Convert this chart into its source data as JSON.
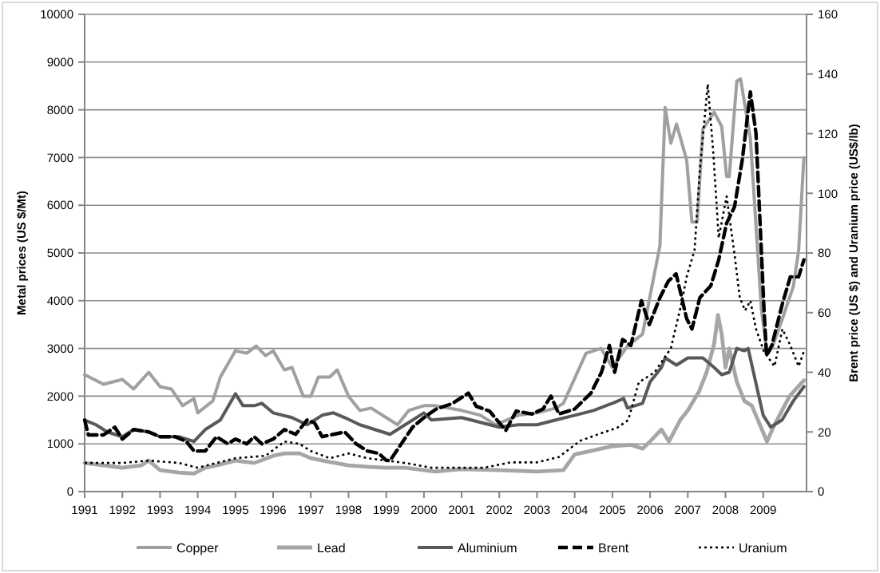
{
  "chart_data": {
    "type": "line",
    "ylabel": "Metal prices (US $/Mt)",
    "y2label": "Brent price (US $) and Uranium price (US$/lb)",
    "xlim": [
      1991,
      2010.15
    ],
    "xticks": [
      1991,
      1992,
      1993,
      1994,
      1995,
      1996,
      1997,
      1998,
      1999,
      2000,
      2001,
      2002,
      2003,
      2004,
      2005,
      2006,
      2007,
      2008,
      2009
    ],
    "ylim": [
      0,
      10000
    ],
    "yticks": [
      0,
      1000,
      2000,
      3000,
      4000,
      5000,
      6000,
      7000,
      8000,
      9000,
      10000
    ],
    "y2lim": [
      0,
      160
    ],
    "y2ticks": [
      0,
      20,
      40,
      60,
      80,
      100,
      120,
      140,
      160
    ],
    "grid": "y",
    "legend": "bottom",
    "marker": "none",
    "series": [
      {
        "name": "Copper",
        "color": "#a0a0a0",
        "line_style": "solid",
        "x": [
          1991,
          1991.5,
          1992,
          1992.3,
          1992.7,
          1993,
          1993.3,
          1993.6,
          1993.9,
          1994,
          1994.4,
          1994.6,
          1995,
          1995.3,
          1995.55,
          1995.8,
          1996,
          1996.3,
          1996.5,
          1996.8,
          1997,
          1997.2,
          1997.5,
          1997.7,
          1998,
          1998.3,
          1998.6,
          1999,
          1999.3,
          1999.6,
          2000,
          2000.3,
          2001,
          2001.5,
          2001.9,
          2002.5,
          2003,
          2003.5,
          2003.7,
          2004.3,
          2004.7,
          2005,
          2005.4,
          2005.8,
          2006.26,
          2006.4,
          2006.55,
          2006.7,
          2006.97,
          2007.11,
          2007.25,
          2007.4,
          2007.7,
          2007.9,
          2008.03,
          2008.1,
          2008.3,
          2008.4,
          2008.66,
          2008.95,
          2009.1,
          2009.23,
          2009.5,
          2009.8,
          2009.94,
          2010.08
        ],
        "values": [
          2450,
          2250,
          2350,
          2150,
          2500,
          2200,
          2150,
          1800,
          1950,
          1650,
          1900,
          2400,
          2950,
          2900,
          3050,
          2850,
          2950,
          2550,
          2600,
          2000,
          2000,
          2400,
          2400,
          2550,
          2000,
          1700,
          1750,
          1550,
          1400,
          1700,
          1800,
          1800,
          1700,
          1600,
          1400,
          1600,
          1650,
          1750,
          1850,
          2900,
          3000,
          2600,
          3050,
          3300,
          5150,
          8050,
          7300,
          7700,
          6950,
          5650,
          5650,
          7600,
          7950,
          7650,
          6600,
          6600,
          8600,
          8650,
          7400,
          3850,
          2900,
          3000,
          3600,
          4300,
          5050,
          7000
        ]
      },
      {
        "name": "Lead",
        "color": "#a6a6a6",
        "line_style": "solid",
        "x": [
          1991,
          1992,
          1992.5,
          1992.7,
          1993,
          1993.5,
          1993.9,
          1994.2,
          1994.5,
          1995,
          1995.5,
          1996,
          1996.3,
          1996.7,
          1997,
          1997.5,
          1998,
          1998.5,
          1999,
          1999.5,
          2000,
          2000.3,
          2001,
          2002,
          2003,
          2003.7,
          2004,
          2004.3,
          2004.7,
          2005,
          2005.5,
          2005.8,
          2006,
          2006.3,
          2006.5,
          2006.8,
          2007,
          2007.3,
          2007.5,
          2007.7,
          2007.8,
          2007.9,
          2008,
          2008.1,
          2008.3,
          2008.5,
          2008.7,
          2009.1,
          2009.3,
          2009.7,
          2010.08
        ],
        "values": [
          600,
          500,
          550,
          650,
          450,
          400,
          380,
          500,
          550,
          650,
          600,
          750,
          800,
          800,
          700,
          620,
          550,
          520,
          500,
          500,
          450,
          420,
          470,
          450,
          420,
          450,
          780,
          830,
          900,
          950,
          980,
          900,
          1050,
          1300,
          1050,
          1500,
          1700,
          2100,
          2500,
          3100,
          3700,
          3300,
          2600,
          3000,
          2300,
          1900,
          1800,
          1050,
          1400,
          2000,
          2330
        ]
      },
      {
        "name": "Aluminium",
        "color": "#595959",
        "line_style": "solid",
        "x": [
          1991,
          1991.3,
          1991.6,
          1992,
          1992.3,
          1992.7,
          1993,
          1993.5,
          1993.9,
          1994.2,
          1994.6,
          1995,
          1995.2,
          1995.5,
          1995.7,
          1996,
          1996.5,
          1996.9,
          1997.3,
          1997.6,
          1997.9,
          1998.3,
          1998.7,
          1999.1,
          1999.5,
          2000,
          2000.2,
          2001,
          2001.5,
          2002,
          2002.5,
          2003,
          2003.5,
          2004,
          2004.5,
          2005,
          2005.3,
          2005.4,
          2005.8,
          2006,
          2006.3,
          2006.4,
          2006.7,
          2007,
          2007.4,
          2007.7,
          2007.9,
          2008.1,
          2008.3,
          2008.5,
          2008.6,
          2008.8,
          2009,
          2009.2,
          2009.5,
          2009.8,
          2010.08
        ],
        "values": [
          1500,
          1400,
          1250,
          1150,
          1300,
          1250,
          1150,
          1150,
          1050,
          1300,
          1500,
          2050,
          1800,
          1800,
          1850,
          1650,
          1550,
          1400,
          1600,
          1650,
          1550,
          1400,
          1300,
          1200,
          1400,
          1650,
          1500,
          1550,
          1450,
          1350,
          1400,
          1400,
          1500,
          1600,
          1700,
          1850,
          1950,
          1750,
          1850,
          2300,
          2600,
          2800,
          2650,
          2800,
          2800,
          2600,
          2450,
          2500,
          3000,
          2950,
          3000,
          2300,
          1600,
          1350,
          1500,
          1900,
          2200
        ]
      },
      {
        "name": "Brent",
        "color": "#000000",
        "line_style": "dashed",
        "axis": "y2",
        "x": [
          1991,
          1991.1,
          1991.5,
          1991.8,
          1992,
          1992.3,
          1992.7,
          1993,
          1993.4,
          1993.7,
          1993.9,
          1994.2,
          1994.5,
          1994.8,
          1995,
          1995.3,
          1995.5,
          1995.7,
          1996,
          1996.3,
          1996.6,
          1996.9,
          1997.1,
          1997.3,
          1997.6,
          1997.9,
          1998.2,
          1998.5,
          1998.8,
          1999,
          1999.1,
          1999.4,
          1999.7,
          2000,
          2000.33,
          2000.75,
          2001.18,
          2001.39,
          2001.74,
          2002.17,
          2002.45,
          2002.87,
          2003.16,
          2003.37,
          2003.58,
          2004,
          2004.43,
          2004.71,
          2004.92,
          2005.06,
          2005.27,
          2005.49,
          2005.77,
          2005.98,
          2006.26,
          2006.48,
          2006.69,
          2006.97,
          2007.11,
          2007.32,
          2007.61,
          2007.82,
          2008.03,
          2008.24,
          2008.45,
          2008.66,
          2008.81,
          2009.02,
          2009.09,
          2009.23,
          2009.51,
          2009.72,
          2009.94,
          2010.08
        ],
        "values": [
          24,
          19,
          19,
          21.6,
          17.6,
          20.8,
          20,
          18.4,
          18.4,
          16.8,
          13.6,
          13.6,
          18.4,
          16,
          17.6,
          16,
          18.4,
          16,
          17.6,
          20.8,
          19.2,
          24,
          23,
          18.4,
          19.2,
          20,
          16,
          13.6,
          12.8,
          10.5,
          10.4,
          16,
          21.6,
          24.8,
          27.7,
          29.5,
          33,
          28.6,
          27,
          20.5,
          27,
          26,
          27.7,
          32,
          26,
          27.7,
          33,
          40,
          49,
          40,
          51,
          49,
          64,
          56,
          65,
          70.5,
          73,
          58,
          54.5,
          65,
          69,
          77.7,
          90,
          95.5,
          111.6,
          134,
          120,
          61.6,
          45.5,
          49,
          63,
          72,
          72,
          77.7
        ]
      },
      {
        "name": "Uranium",
        "color": "#000000",
        "line_style": "dotted",
        "axis": "y2",
        "x": [
          1991,
          1992,
          1992.7,
          1993.5,
          1994,
          1994.5,
          1995,
          1995.8,
          1996.3,
          1996.7,
          1997,
          1997.5,
          1998,
          1998.5,
          1999,
          1999.5,
          2000.2,
          2001.6,
          2002.3,
          2003,
          2003.58,
          2004.14,
          2004.71,
          2005.13,
          2005.42,
          2005.7,
          2006.12,
          2006.55,
          2006.83,
          2006.97,
          2007.18,
          2007.32,
          2007.53,
          2007.68,
          2007.82,
          2008.03,
          2008.24,
          2008.38,
          2008.52,
          2008.66,
          2008.81,
          2009.02,
          2009.3,
          2009.51,
          2009.72,
          2009.94,
          2010.08
        ],
        "values": [
          9.6,
          9.6,
          10.4,
          9.6,
          8,
          9.6,
          11.2,
          12,
          16.8,
          16,
          13.6,
          11.2,
          12.8,
          11.2,
          10.4,
          9.6,
          8,
          8,
          9.8,
          9.8,
          11.6,
          17,
          19.6,
          21.4,
          24,
          36.6,
          40,
          48,
          63,
          72,
          81,
          108,
          136.6,
          113,
          85,
          99,
          79.5,
          65,
          60.7,
          64,
          54.5,
          47,
          42,
          54.5,
          49,
          42,
          47
        ]
      }
    ]
  }
}
